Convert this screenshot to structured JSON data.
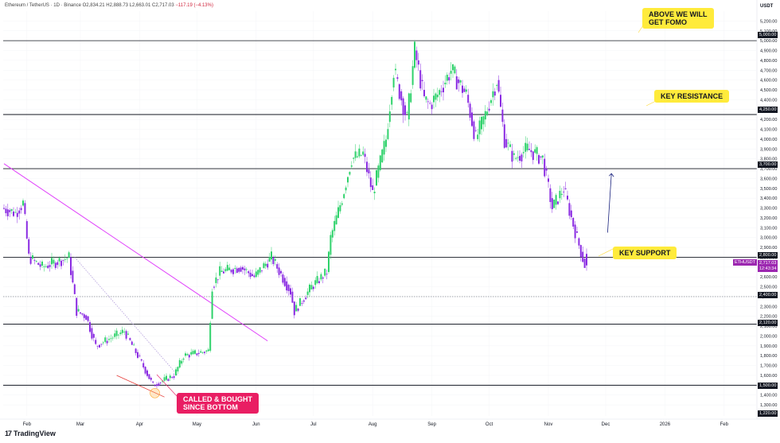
{
  "header": {
    "symbol": "Ethereum / TetherUS · 1D · Binance",
    "ohlc": "O2,834.21  H2,888.73  L2,663.01  C2,717.03",
    "change": "−117.19 (−4.13%)"
  },
  "brand": {
    "logo": "17",
    "name": "TradingView"
  },
  "currency": "USDT",
  "annotations": {
    "fomo": "ABOVE WE WILL\nGET FOMO",
    "resistance": "KEY RESISTANCE",
    "support": "KEY SUPPORT",
    "bottom": "CALLED & BOUGHT\nSINCE BOTTOM"
  },
  "price_tags": {
    "l5000": "5,000.00",
    "l4250": "4,250.00",
    "l3700": "3,700.00",
    "l2800": "2,800.00",
    "l2400": "2,400.00",
    "l2120": "2,120.00",
    "l1500": "1,500.00",
    "l1220": "1,220.00",
    "symbol_tag": "ETHUSDT",
    "last_price": "2,717.03",
    "countdown": "12:43:34"
  },
  "colors": {
    "up": "#2fd26b",
    "down": "#8a2be2",
    "trendline": "#e040fb",
    "accent": "#ffeb3b",
    "pink": "#e91e63"
  },
  "chart_data": {
    "type": "candlestick",
    "title": "Ethereum / TetherUS · 1D · Binance",
    "ylim": [
      1220,
      5300
    ],
    "y_ticks": [
      1300,
      1400,
      1500,
      1600,
      1700,
      1800,
      1900,
      2000,
      2100,
      2200,
      2300,
      2400,
      2500,
      2600,
      2700,
      2800,
      2900,
      3000,
      3100,
      3200,
      3300,
      3400,
      3500,
      3600,
      3700,
      3800,
      3900,
      4000,
      4100,
      4200,
      4300,
      4400,
      4500,
      4600,
      4700,
      4800,
      4900,
      5000,
      5100,
      5200
    ],
    "x_ticks": [
      "Feb",
      "Mar",
      "Apr",
      "May",
      "Jun",
      "Jul",
      "Aug",
      "Sep",
      "Oct",
      "Nov",
      "Dec",
      "2026",
      "Feb"
    ],
    "horizontal_levels": [
      5000,
      4250,
      3700,
      2800,
      2400,
      2120,
      1500
    ],
    "dotted_levels": [
      2400
    ],
    "price_path": [
      [
        "Jan 20",
        3300
      ],
      [
        "Jan 27",
        3250
      ],
      [
        "Jan 31",
        3350
      ],
      [
        "Feb 3",
        2800
      ],
      [
        "Feb 10",
        2700
      ],
      [
        "Feb 17",
        2750
      ],
      [
        "Feb 24",
        2800
      ],
      [
        "Feb 28",
        2250
      ],
      [
        "Mar 5",
        2200
      ],
      [
        "Mar 10",
        1900
      ],
      [
        "Mar 20",
        2000
      ],
      [
        "Mar 25",
        2050
      ],
      [
        "Apr 1",
        1800
      ],
      [
        "Apr 9",
        1500
      ],
      [
        "Apr 20",
        1600
      ],
      [
        "Apr 25",
        1800
      ],
      [
        "May 8",
        1850
      ],
      [
        "May 10",
        2500
      ],
      [
        "May 14",
        2650
      ],
      [
        "May 25",
        2700
      ],
      [
        "Jun 1",
        2600
      ],
      [
        "Jun 10",
        2800
      ],
      [
        "Jun 20",
        2450
      ],
      [
        "Jun 22",
        2250
      ],
      [
        "Jul 1",
        2500
      ],
      [
        "Jul 9",
        2650
      ],
      [
        "Jul 11",
        3000
      ],
      [
        "Jul 17",
        3400
      ],
      [
        "Jul 22",
        3800
      ],
      [
        "Jul 28",
        3850
      ],
      [
        "Aug 2",
        3450
      ],
      [
        "Aug 9",
        4000
      ],
      [
        "Aug 13",
        4700
      ],
      [
        "Aug 20",
        4200
      ],
      [
        "Aug 24",
        4900
      ],
      [
        "Aug 29",
        4400
      ],
      [
        "Sep 1",
        4350
      ],
      [
        "Sep 5",
        4450
      ],
      [
        "Sep 12",
        4700
      ],
      [
        "Sep 20",
        4450
      ],
      [
        "Sep 25",
        4000
      ],
      [
        "Sep 30",
        4250
      ],
      [
        "Oct 6",
        4600
      ],
      [
        "Oct 10",
        4000
      ],
      [
        "Oct 15",
        3800
      ],
      [
        "Oct 22",
        3900
      ],
      [
        "Oct 30",
        3800
      ],
      [
        "Nov 4",
        3300
      ],
      [
        "Nov 10",
        3500
      ],
      [
        "Nov 14",
        3200
      ],
      [
        "Nov 21",
        2717
      ]
    ],
    "last": {
      "open": 2834.21,
      "high": 2888.73,
      "low": 2663.01,
      "close": 2717.03
    },
    "trendlines": [
      {
        "from": [
          "Jan 20",
          3750
        ],
        "to": [
          "Jun 7",
          1950
        ],
        "color": "#e040fb"
      },
      {
        "from": [
          "Mar 20",
          1600
        ],
        "to": [
          "Apr 14",
          1380
        ],
        "color": "#e53935"
      },
      {
        "from": [
          "Feb 26",
          2800
        ],
        "to": [
          "Apr 21",
          1600
        ],
        "color": "#b39ddb"
      }
    ],
    "arrow": {
      "from": [
        "Dec 2",
        3050
      ],
      "to": [
        "Dec 4",
        3650
      ]
    }
  }
}
